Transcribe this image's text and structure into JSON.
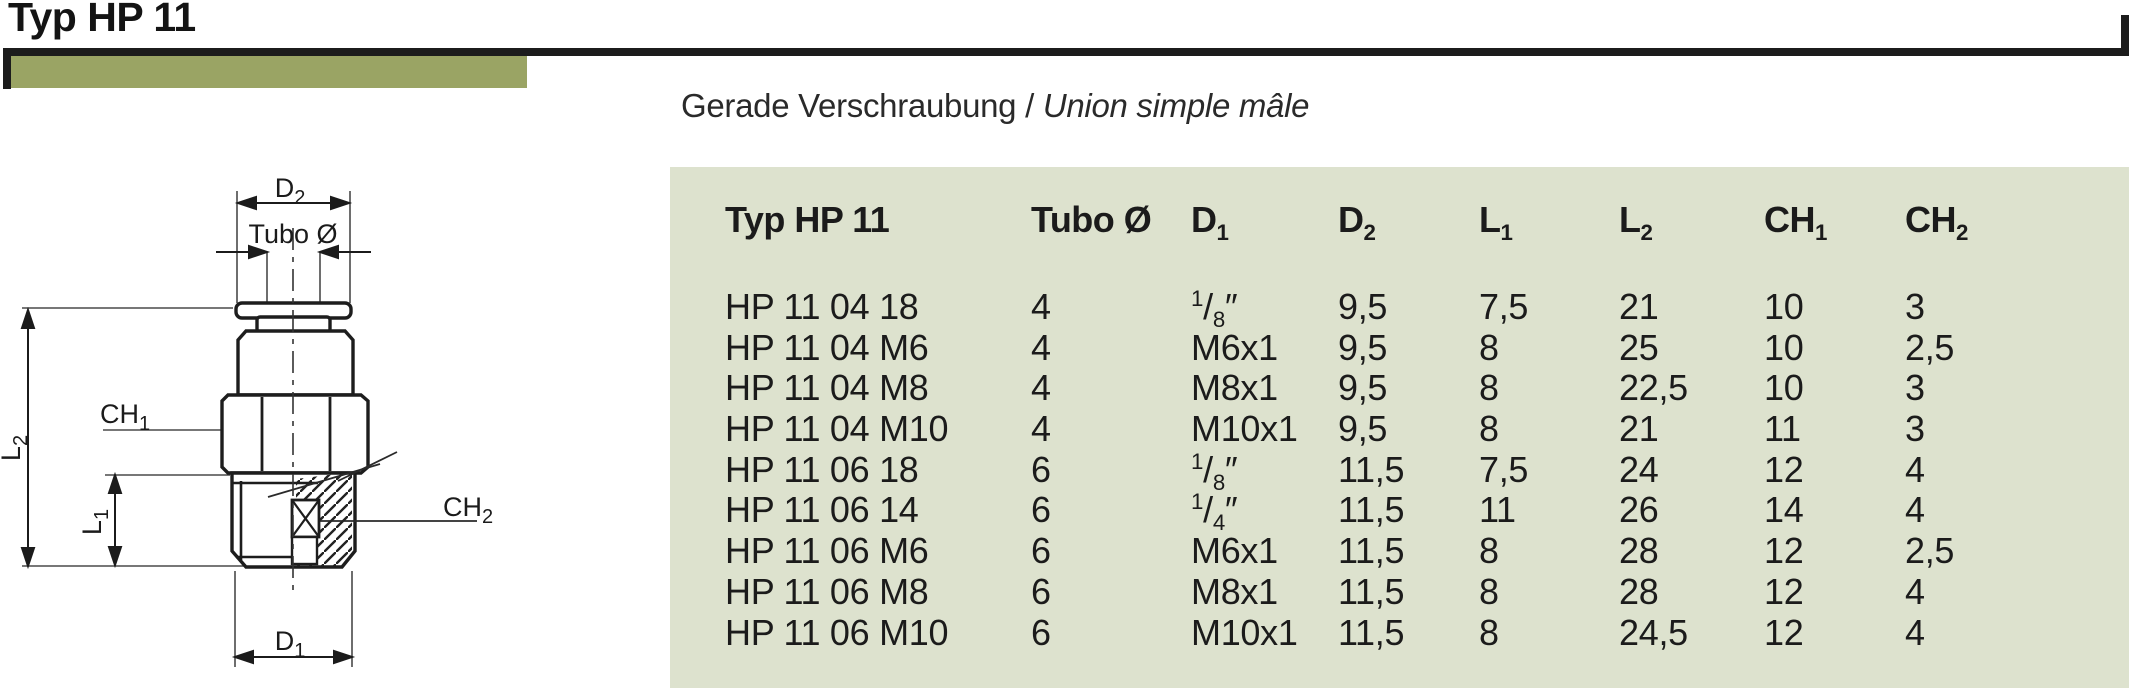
{
  "page": {
    "title": "Typ HP 11",
    "subtitle_de": "Gerade Verschraubung",
    "subtitle_sep": " / ",
    "subtitle_fr": "Union simple mâle"
  },
  "colors": {
    "accent_green": "#9aa464",
    "table_background": "#dde2ce",
    "ink": "#1b1b1b"
  },
  "drawing": {
    "labels": {
      "d2": {
        "base": "D",
        "sub": "2"
      },
      "tubo": {
        "base": "Tubo Ø",
        "sub": ""
      },
      "ch1": {
        "base": "CH",
        "sub": "1"
      },
      "l2": {
        "base": "L",
        "sub": "2"
      },
      "l1": {
        "base": "L",
        "sub": "1"
      },
      "ch2": {
        "base": "CH",
        "sub": "2"
      },
      "d1": {
        "base": "D",
        "sub": "1"
      }
    }
  },
  "table": {
    "headers": [
      {
        "base": "Typ HP 11",
        "sub": ""
      },
      {
        "base": "Tubo Ø",
        "sub": ""
      },
      {
        "base": "D",
        "sub": "1"
      },
      {
        "base": "D",
        "sub": "2"
      },
      {
        "base": "L",
        "sub": "1"
      },
      {
        "base": "L",
        "sub": "2"
      },
      {
        "base": "CH",
        "sub": "1"
      },
      {
        "base": "CH",
        "sub": "2"
      }
    ],
    "rows": [
      [
        "HP 11 04 18",
        "4",
        "1/8″",
        "9,5",
        "7,5",
        "21",
        "10",
        "3"
      ],
      [
        "HP 11 04 M6",
        "4",
        "M6x1",
        "9,5",
        "8",
        "25",
        "10",
        "2,5"
      ],
      [
        "HP 11 04 M8",
        "4",
        "M8x1",
        "9,5",
        "8",
        "22,5",
        "10",
        "3"
      ],
      [
        "HP 11 04 M10",
        "4",
        "M10x1",
        "9,5",
        "8",
        "21",
        "11",
        "3"
      ],
      [
        "HP 11 06 18",
        "6",
        "1/8″",
        "11,5",
        "7,5",
        "24",
        "12",
        "4"
      ],
      [
        "HP 11 06 14",
        "6",
        "1/4″",
        "11,5",
        "11",
        "26",
        "14",
        "4"
      ],
      [
        "HP 11 06 M6",
        "6",
        "M6x1",
        "11,5",
        "8",
        "28",
        "12",
        "2,5"
      ],
      [
        "HP 11 06 M8",
        "6",
        "M8x1",
        "11,5",
        "8",
        "28",
        "12",
        "4"
      ],
      [
        "HP 11 06 M10",
        "6",
        "M10x1",
        "11,5",
        "8",
        "24,5",
        "12",
        "4"
      ]
    ]
  }
}
